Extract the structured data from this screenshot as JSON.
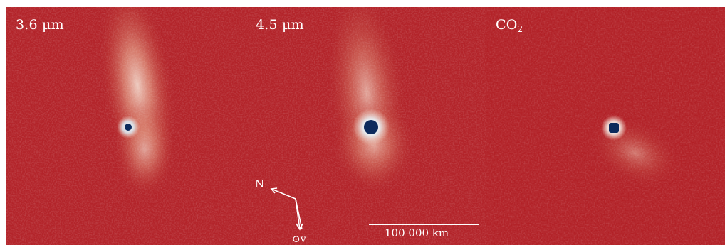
{
  "panels": [
    {
      "id": "p36",
      "label": "3.6 μm"
    },
    {
      "id": "p45",
      "label": "4.5 μm"
    },
    {
      "id": "pco2",
      "label_main": "CO",
      "label_sub": "2"
    }
  ],
  "compass": {
    "north_label": "N",
    "sun_velocity_label": "⊙v"
  },
  "scale_bar": {
    "label": "100 000 km"
  },
  "colors": {
    "background": "#b3242a",
    "coma": "#f7e4d6",
    "nucleus": "#0b2a5c",
    "annotation": "#ffffff"
  }
}
